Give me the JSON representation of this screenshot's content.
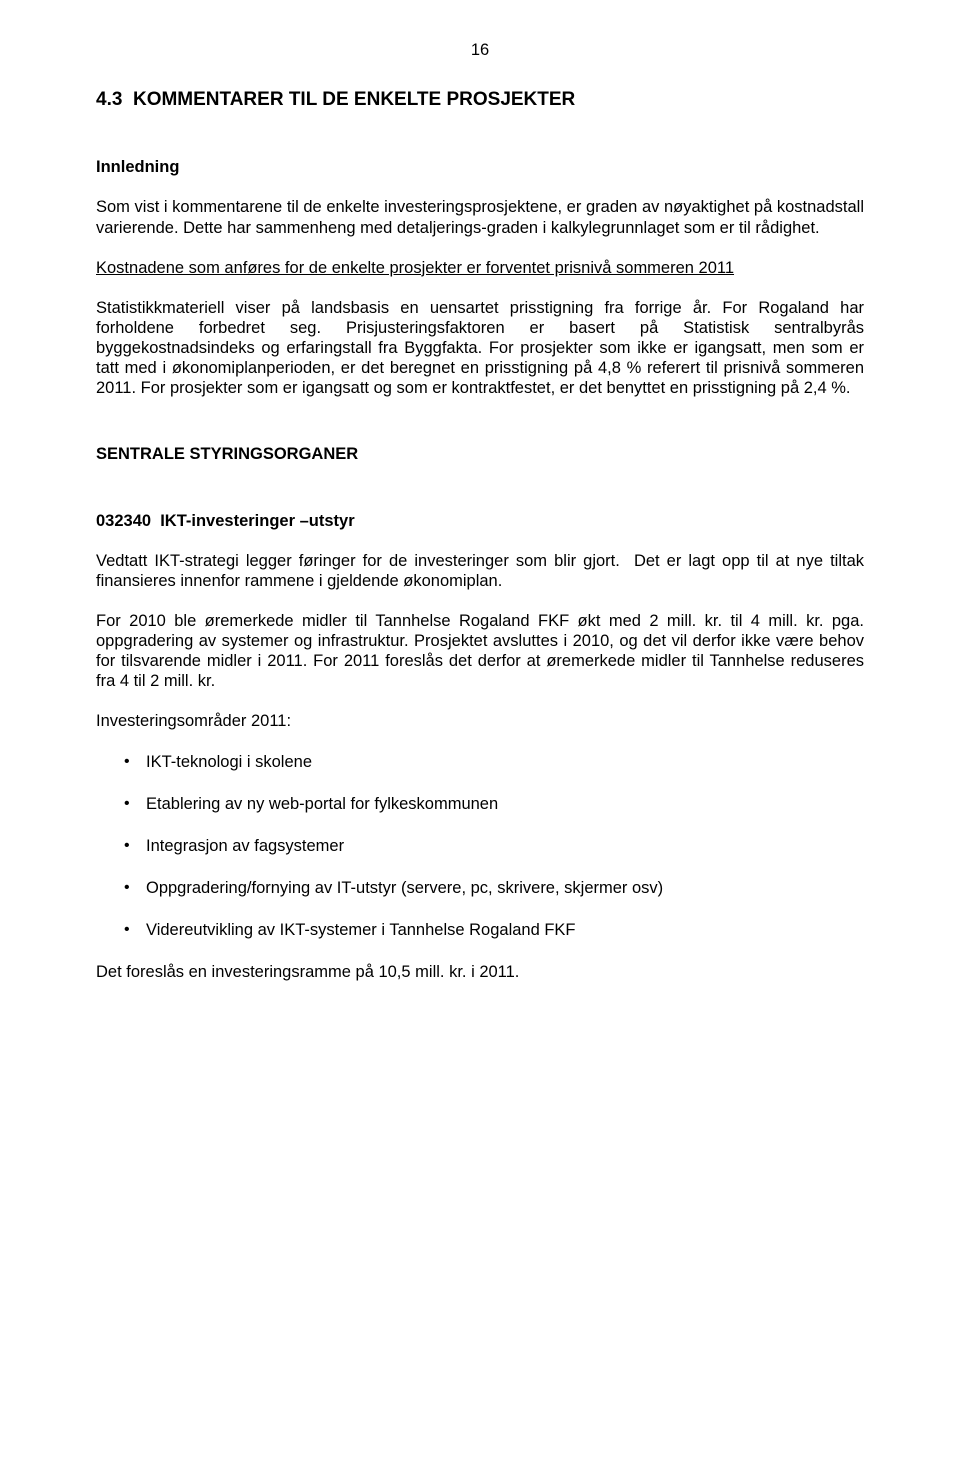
{
  "page_number": "16",
  "heading_main": "4.3  KOMMENTARER TIL DE ENKELTE PROSJEKTER",
  "heading_innledning": "Innledning",
  "p1": "Som vist i kommentarene til de enkelte investeringsprosjektene, er graden av nøyaktighet på kostnadstall varierende. Dette har sammenheng med detaljerings-graden i kalkylegrunnlaget som er til rådighet.",
  "p2_underlined": "Kostnadene som anføres for de enkelte prosjekter er forventet prisnivå sommeren 2011",
  "p3": "Statistikkmateriell viser på landsbasis en uensartet prisstigning fra forrige år. For Rogaland har forholdene forbedret seg. Prisjusteringsfaktoren er basert på Statistisk sentralbyrås byggekostnadsindeks og erfaringstall fra Byggfakta. For prosjekter som ikke er igangsatt, men som er tatt med i økonomiplanperioden, er det beregnet en prisstigning på 4,8 % referert til prisnivå sommeren 2011. For prosjekter som er igangsatt og som er kontraktfestet, er det benyttet en prisstigning på 2,4 %.",
  "heading_sentrale": "SENTRALE STYRINGSORGANER",
  "heading_ikt": "032340  IKT-investeringer –utstyr",
  "p4": "Vedtatt IKT-strategi legger føringer for de investeringer som blir gjort.  Det er lagt opp til at nye tiltak finansieres innenfor rammene i gjeldende økonomiplan.",
  "p5": "For 2010 ble øremerkede midler til Tannhelse Rogaland FKF økt med 2 mill. kr. til 4 mill. kr. pga. oppgradering av systemer og infrastruktur. Prosjektet avsluttes i 2010, og det vil derfor ikke være behov for tilsvarende midler i 2011. For 2011 foreslås det derfor at øremerkede midler til Tannhelse reduseres fra 4 til 2 mill. kr.",
  "p6": "Investeringsområder 2011:",
  "bullets": [
    "IKT-teknologi i skolene",
    "Etablering av ny web-portal for fylkeskommunen",
    "Integrasjon av fagsystemer",
    "Oppgradering/fornying av IT-utstyr (servere, pc, skrivere, skjermer osv)",
    "Videreutvikling av IKT-systemer i Tannhelse Rogaland FKF"
  ],
  "p7": "Det foreslås en investeringsramme på 10,5 mill. kr. i 2011."
}
